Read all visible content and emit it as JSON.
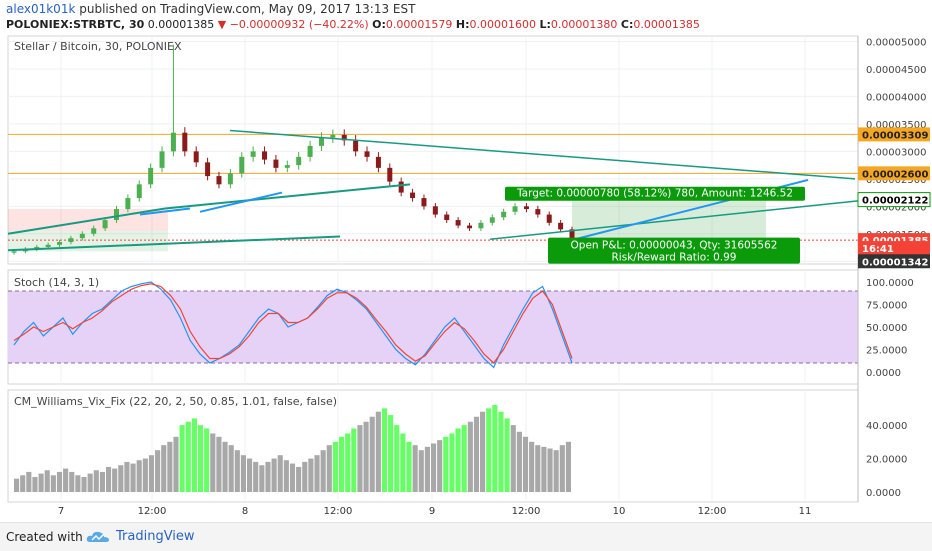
{
  "header": {
    "user": "alex01k01k",
    "published": "published on TradingView.com, May 09, 2017 13:13 EST",
    "symbol": "POLONIEX:STRBTC, 30",
    "last": "0.00001385",
    "change": "−0.00000932 (−40.22%)",
    "o_label": "O:",
    "o": "0.00001579",
    "h_label": "H:",
    "h": "0.00001600",
    "l_label": "L:",
    "l": "0.00001380",
    "c_label": "C:",
    "c": "0.00001385"
  },
  "colors": {
    "up": "#4caf50",
    "down": "#8b1a1a",
    "accent": "#2196f3",
    "trend": "#189a82",
    "orange": "#f5a623",
    "green_badge": "#0a9a0a",
    "red_badge": "#f44336",
    "stoch_bg": "#e6d2f7",
    "stoch_k": "#2196f3",
    "stoch_d": "#f44336",
    "vix_grey": "#a8a8a8",
    "vix_green": "#66ff66"
  },
  "chart_data": [
    {
      "type": "candlestick",
      "title": "Stellar / Bitcoin, 30, POLONIEX",
      "y_ticks": [
        "0.00005000",
        "0.00004500",
        "0.00004000",
        "0.00003500",
        "0.00003000",
        "0.00002500",
        "0.00002000",
        "0.00001500",
        "0.00001000"
      ],
      "ylim": [
        9.5e-06,
        5.1e-05
      ],
      "x_ticks": [
        "7",
        "12:00",
        "8",
        "12:00",
        "9",
        "12:00",
        "10",
        "12:00",
        "11"
      ],
      "price_labels": [
        {
          "label": "0.00003309",
          "value": 3.309e-05,
          "style": "orange"
        },
        {
          "label": "0.00002600",
          "value": 2.6e-05,
          "style": "orange"
        },
        {
          "label": "0.00002122",
          "value": 2.122e-05,
          "style": "green"
        },
        {
          "label": "0.00001385",
          "value": 1.385e-05,
          "style": "red"
        },
        {
          "label": "16:41",
          "value": 1.24e-05,
          "style": "red"
        },
        {
          "label": "0.00001342",
          "value": 1e-05,
          "style": "dark"
        }
      ],
      "horizontal_lines": [
        3.309e-05,
        2.6e-05
      ],
      "position": {
        "target_text": "Target: 0.00000780 (58.12%) 780, Amount: 1246.52",
        "pnl_text": "Open P&L: 0.00000043, Qty: 31605562",
        "rr_text": "Risk/Reward Ratio: 0.99",
        "entry": 1.385e-05,
        "target": 2.122e-05,
        "stop": 1e-05
      },
      "candles_seed_closes": [
        1.18e-05,
        1.22e-05,
        1.26e-05,
        1.3e-05,
        1.35e-05,
        1.42e-05,
        1.5e-05,
        1.6e-05,
        1.75e-05,
        1.95e-05,
        2.15e-05,
        2.4e-05,
        2.7e-05,
        3e-05,
        3.34e-05,
        3e-05,
        2.8e-05,
        2.55e-05,
        2.4e-05,
        2.6e-05,
        2.9e-05,
        3e-05,
        2.85e-05,
        2.7e-05,
        2.75e-05,
        2.9e-05,
        3.1e-05,
        3.25e-05,
        3.3e-05,
        3.2e-05,
        3e-05,
        2.9e-05,
        2.7e-05,
        2.45e-05,
        2.25e-05,
        2.15e-05,
        2e-05,
        1.85e-05,
        1.75e-05,
        1.65e-05,
        1.6e-05,
        1.7e-05,
        1.8e-05,
        1.9e-05,
        2e-05,
        1.95e-05,
        1.85e-05,
        1.7e-05,
        1.58e-05,
        1.39e-05
      ]
    },
    {
      "type": "line",
      "title": "Stoch (14, 3, 1)",
      "y_ticks": [
        "100.0000",
        "75.0000",
        "50.0000",
        "25.0000",
        "0.0000"
      ],
      "ylim": [
        0,
        100
      ],
      "bands": [
        90,
        10
      ],
      "series": [
        {
          "name": "%K",
          "values": [
            30,
            45,
            55,
            40,
            50,
            60,
            42,
            55,
            65,
            70,
            80,
            90,
            95,
            98,
            100,
            92,
            80,
            60,
            35,
            20,
            10,
            15,
            22,
            30,
            45,
            60,
            70,
            65,
            50,
            55,
            60,
            72,
            85,
            92,
            88,
            80,
            70,
            55,
            40,
            25,
            15,
            8,
            20,
            35,
            50,
            60,
            45,
            30,
            15,
            5,
            30,
            50,
            70,
            88,
            95,
            70,
            40,
            10
          ]
        },
        {
          "name": "%D",
          "values": [
            35,
            42,
            50,
            45,
            50,
            55,
            48,
            55,
            60,
            68,
            78,
            85,
            92,
            96,
            98,
            95,
            85,
            70,
            45,
            28,
            15,
            15,
            20,
            28,
            40,
            55,
            65,
            65,
            55,
            55,
            60,
            70,
            82,
            88,
            88,
            82,
            72,
            58,
            45,
            30,
            20,
            12,
            18,
            32,
            45,
            55,
            48,
            35,
            20,
            10,
            25,
            45,
            65,
            82,
            90,
            75,
            45,
            15
          ]
        }
      ]
    },
    {
      "type": "bar",
      "title": "CM_Williams_Vix_Fix (22, 20, 2, 50, 0.85, 1.01, false, false)",
      "y_ticks": [
        "40.0000",
        "20.0000",
        "0.0000"
      ],
      "ylim": [
        0,
        55
      ],
      "values_seed": [
        8,
        10,
        12,
        9,
        11,
        13,
        10,
        12,
        14,
        12,
        10,
        9,
        11,
        13,
        12,
        15,
        14,
        16,
        18,
        17,
        19,
        20,
        22,
        25,
        28,
        30,
        33,
        40,
        42,
        44,
        40,
        38,
        35,
        33,
        30,
        28,
        25,
        22,
        20,
        18,
        16,
        18,
        20,
        22,
        19,
        17,
        15,
        18,
        20,
        22,
        25,
        28,
        30,
        33,
        35,
        38,
        40,
        42,
        45,
        48,
        50,
        46,
        40,
        35,
        30,
        28,
        25,
        27,
        29,
        31,
        33,
        35,
        38,
        40,
        42,
        45,
        48,
        50,
        52,
        48,
        44,
        40,
        36,
        33,
        30,
        28,
        27,
        26,
        25,
        28,
        30
      ],
      "green_indices": [
        27,
        28,
        29,
        30,
        31,
        52,
        53,
        54,
        55,
        60,
        61,
        62,
        63,
        64,
        70,
        71,
        72,
        73,
        77,
        78,
        79,
        80
      ]
    }
  ]
}
